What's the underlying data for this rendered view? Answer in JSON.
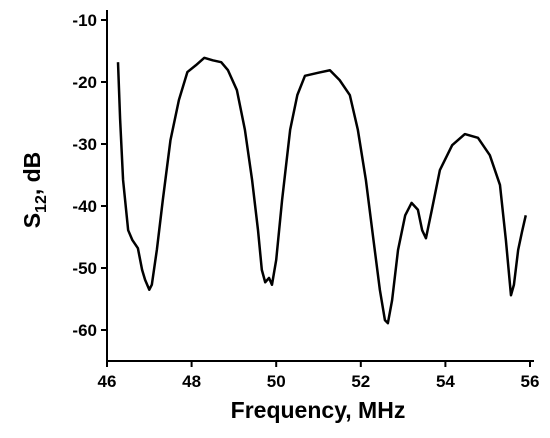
{
  "chart_data": {
    "type": "line",
    "xlabel": "Frequency, MHz",
    "ylabel_main": "S",
    "ylabel_sub": "12",
    "ylabel_rest": ", dB",
    "xlim": [
      46,
      56
    ],
    "xticks": [
      46,
      48,
      50,
      52,
      54,
      56
    ],
    "ylim": [
      -65,
      -10
    ],
    "yticks": [
      -60,
      -50,
      -40,
      -30,
      -20,
      -10
    ],
    "grid": false,
    "series": [
      {
        "color": "#000000",
        "x": [
          46.26,
          46.31,
          46.38,
          46.5,
          46.6,
          46.73,
          46.83,
          46.9,
          47.0,
          47.06,
          47.18,
          47.32,
          47.5,
          47.7,
          47.9,
          48.1,
          48.3,
          48.5,
          48.7,
          48.86,
          49.07,
          49.26,
          49.43,
          49.57,
          49.66,
          49.74,
          49.83,
          49.9,
          50.0,
          50.14,
          50.33,
          50.5,
          50.68,
          51.0,
          51.27,
          51.5,
          51.74,
          51.93,
          52.12,
          52.3,
          52.45,
          52.57,
          52.64,
          52.74,
          52.88,
          53.05,
          53.2,
          53.35,
          53.45,
          53.54,
          53.68,
          53.87,
          54.16,
          54.46,
          54.77,
          55.05,
          55.29,
          55.43,
          55.55,
          55.62,
          55.72,
          55.81,
          55.9
        ],
        "values": [
          -16.8,
          -26,
          -35.8,
          -43.9,
          -45.5,
          -46.8,
          -50.3,
          -51.9,
          -53.5,
          -52.7,
          -47,
          -39,
          -29.4,
          -22.9,
          -18.4,
          -17.3,
          -16.1,
          -16.5,
          -16.8,
          -18.1,
          -21.3,
          -27.7,
          -35.8,
          -43.9,
          -50.3,
          -52.3,
          -51.6,
          -52.7,
          -48.7,
          -39,
          -27.7,
          -22.1,
          -19,
          -18.5,
          -18.1,
          -19.7,
          -22.1,
          -27.7,
          -35.8,
          -45.5,
          -53.5,
          -58.4,
          -58.9,
          -55.2,
          -47.1,
          -41.5,
          -39.5,
          -40.6,
          -43.9,
          -45.2,
          -40.6,
          -34.2,
          -30.2,
          -28.4,
          -29,
          -31.8,
          -36.6,
          -45.5,
          -54.4,
          -52.7,
          -47.1,
          -44.2,
          -41.5
        ]
      }
    ]
  }
}
